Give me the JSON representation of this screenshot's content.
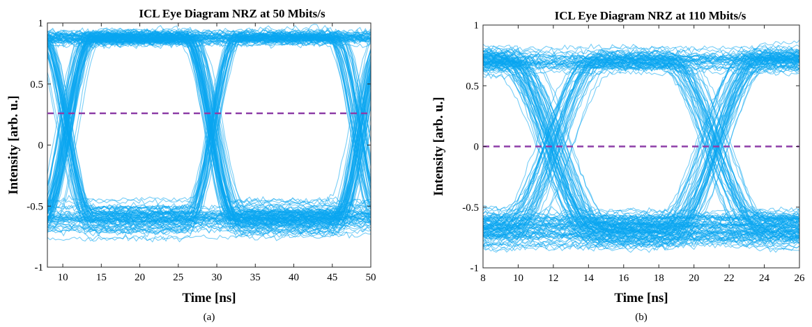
{
  "chart_data": [
    {
      "type": "line",
      "title": "ICL Eye Diagram NRZ at 50 Mbits/s",
      "xlabel": "Time [ns]",
      "ylabel": "Intensity [arb. u.]",
      "caption": "(a)",
      "xlim": [
        8,
        50
      ],
      "ylim": [
        -1,
        1
      ],
      "xticks": [
        10,
        15,
        20,
        25,
        30,
        35,
        40,
        45,
        50
      ],
      "yticks": [
        -1,
        -0.5,
        0,
        0.5,
        1
      ],
      "ytick_labels": [
        "-1",
        "-0.5",
        "0",
        "0.5",
        "1"
      ],
      "grid": false,
      "trace_color": "#0aa6f0",
      "threshold": {
        "y": 0.26,
        "color": "#8e3fa8",
        "style": "dashed"
      },
      "eye": {
        "level_high": 0.88,
        "level_low": -0.6,
        "high_spread": 0.1,
        "low_spread": 0.26,
        "crossings": [
          10.5,
          29.5,
          48.5
        ],
        "edge_width": 3.2,
        "eye_top": 0.82,
        "eye_bottom": -0.28
      }
    },
    {
      "type": "line",
      "title": "ICL Eye Diagram NRZ at 110 Mbits/s",
      "xlabel": "Time [ns]",
      "ylabel": "Intensity [arb. u.]",
      "caption": "(b)",
      "xlim": [
        8,
        26
      ],
      "ylim": [
        -1,
        1
      ],
      "xticks": [
        8,
        10,
        12,
        14,
        16,
        18,
        20,
        22,
        24,
        26
      ],
      "yticks": [
        -1,
        -0.5,
        0,
        0.5,
        1
      ],
      "ytick_labels": [
        "-1",
        "-0.5",
        "0",
        "0.5",
        "1"
      ],
      "grid": false,
      "trace_color": "#0aa6f0",
      "threshold": {
        "y": 0.0,
        "color": "#8e3fa8",
        "style": "dashed"
      },
      "eye": {
        "level_high": 0.72,
        "level_low": -0.68,
        "high_spread": 0.18,
        "low_spread": 0.26,
        "crossings": [
          12.0,
          21.1
        ],
        "edge_width": 2.6,
        "eye_top": 0.08,
        "eye_bottom": -0.06
      }
    }
  ]
}
